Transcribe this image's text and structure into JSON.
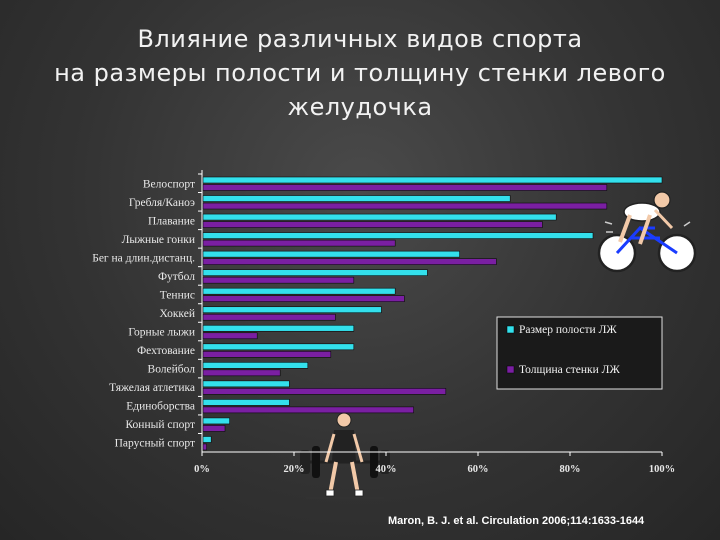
{
  "title_lines": [
    "Влияние различных видов спорта",
    "на размеры полости и толщину стенки левого",
    "желудочка"
  ],
  "citation": "Maron, B. J. et al. Circulation 2006;114:1633-1644",
  "colors": {
    "series_cavity": "#33e0ec",
    "series_wall": "#7a1fa2",
    "axis": "#ffffff",
    "label_text": "#e8e8e8"
  },
  "chart_data": {
    "type": "bar",
    "orientation": "horizontal",
    "categories": [
      "Велоспорт",
      "Гребля/Каноэ",
      "Плавание",
      "Лыжные гонки",
      "Бег на длин.дистанц.",
      "Футбол",
      "Теннис",
      "Хоккей",
      "Горные лыжи",
      "Фехтование",
      "Волейбол",
      "Тяжелая атлетика",
      "Единоборства",
      "Конный спорт",
      "Парусный спорт"
    ],
    "series": [
      {
        "name": "Размер полости ЛЖ",
        "values": [
          100,
          67,
          77,
          85,
          56,
          49,
          42,
          39,
          33,
          33,
          23,
          19,
          19,
          6,
          2
        ]
      },
      {
        "name": "Толщина стенки ЛЖ",
        "values": [
          88,
          88,
          74,
          42,
          64,
          33,
          44,
          29,
          12,
          28,
          17,
          53,
          46,
          5,
          1
        ]
      }
    ],
    "x_ticks": [
      "0%",
      "20%",
      "40%",
      "60%",
      "80%",
      "100%"
    ],
    "xlim": [
      0,
      100
    ],
    "legend_position": "right"
  }
}
